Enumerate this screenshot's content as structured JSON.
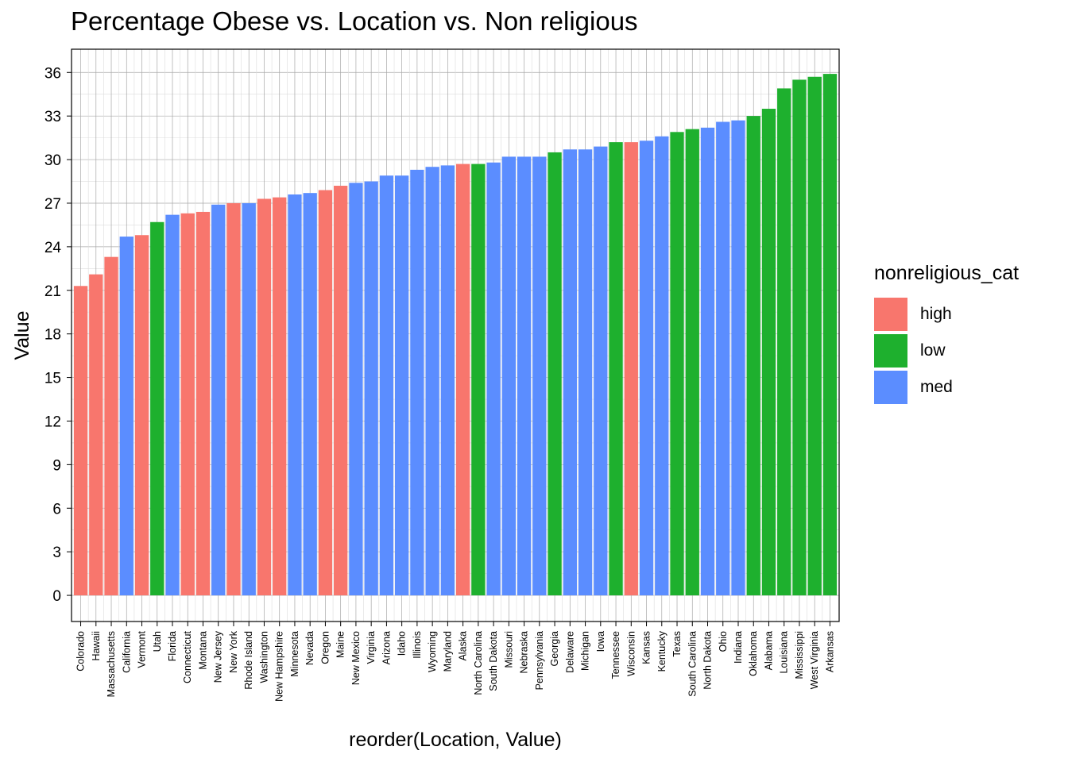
{
  "chart_data": {
    "type": "bar",
    "title": "Percentage Obese vs. Location vs. Non religious",
    "xlabel": "reorder(Location, Value)",
    "ylabel": "Value",
    "ylim": [
      -1.8,
      37.6
    ],
    "yticks": [
      0,
      3,
      6,
      9,
      12,
      15,
      18,
      21,
      24,
      27,
      30,
      33,
      36
    ],
    "grid": true,
    "legend": {
      "title": "nonreligious_cat",
      "position": "right",
      "entries": [
        {
          "label": "high",
          "color": "#F8766D"
        },
        {
          "label": "low",
          "color": "#1EB02E"
        },
        {
          "label": "med",
          "color": "#5B8DFF"
        }
      ]
    },
    "categories": [
      "Colorado",
      "Hawaii",
      "Massachusetts",
      "California",
      "Vermont",
      "Utah",
      "Florida",
      "Connecticut",
      "Montana",
      "New Jersey",
      "New York",
      "Rhode Island",
      "Washington",
      "New Hampshire",
      "Minnesota",
      "Nevada",
      "Oregon",
      "Maine",
      "New Mexico",
      "Virginia",
      "Arizona",
      "Idaho",
      "Illinois",
      "Wyoming",
      "Maryland",
      "Alaska",
      "North Carolina",
      "South Dakota",
      "Missouri",
      "Nebraska",
      "Pennsylvania",
      "Georgia",
      "Delaware",
      "Michigan",
      "Iowa",
      "Tennessee",
      "Wisconsin",
      "Kansas",
      "Kentucky",
      "Texas",
      "South Carolina",
      "North Dakota",
      "Ohio",
      "Indiana",
      "Oklahoma",
      "Alabama",
      "Louisiana",
      "Mississippi",
      "West Virginia",
      "Arkansas"
    ],
    "values": [
      21.3,
      22.1,
      23.3,
      24.7,
      24.8,
      25.7,
      26.2,
      26.3,
      26.4,
      26.9,
      27.0,
      27.0,
      27.3,
      27.4,
      27.6,
      27.7,
      27.9,
      28.2,
      28.4,
      28.5,
      28.9,
      28.9,
      29.3,
      29.5,
      29.6,
      29.7,
      29.7,
      29.8,
      30.2,
      30.2,
      30.2,
      30.5,
      30.7,
      30.7,
      30.9,
      31.2,
      31.2,
      31.3,
      31.6,
      31.9,
      32.1,
      32.2,
      32.6,
      32.7,
      33.0,
      33.5,
      34.9,
      35.5,
      35.7,
      35.9
    ],
    "groups": [
      "high",
      "high",
      "high",
      "med",
      "high",
      "low",
      "med",
      "high",
      "high",
      "med",
      "high",
      "med",
      "high",
      "high",
      "med",
      "med",
      "high",
      "high",
      "med",
      "med",
      "med",
      "med",
      "med",
      "med",
      "med",
      "high",
      "low",
      "med",
      "med",
      "med",
      "med",
      "low",
      "med",
      "med",
      "med",
      "low",
      "high",
      "med",
      "med",
      "low",
      "low",
      "med",
      "med",
      "med",
      "low",
      "low",
      "low",
      "low",
      "low",
      "low"
    ]
  }
}
